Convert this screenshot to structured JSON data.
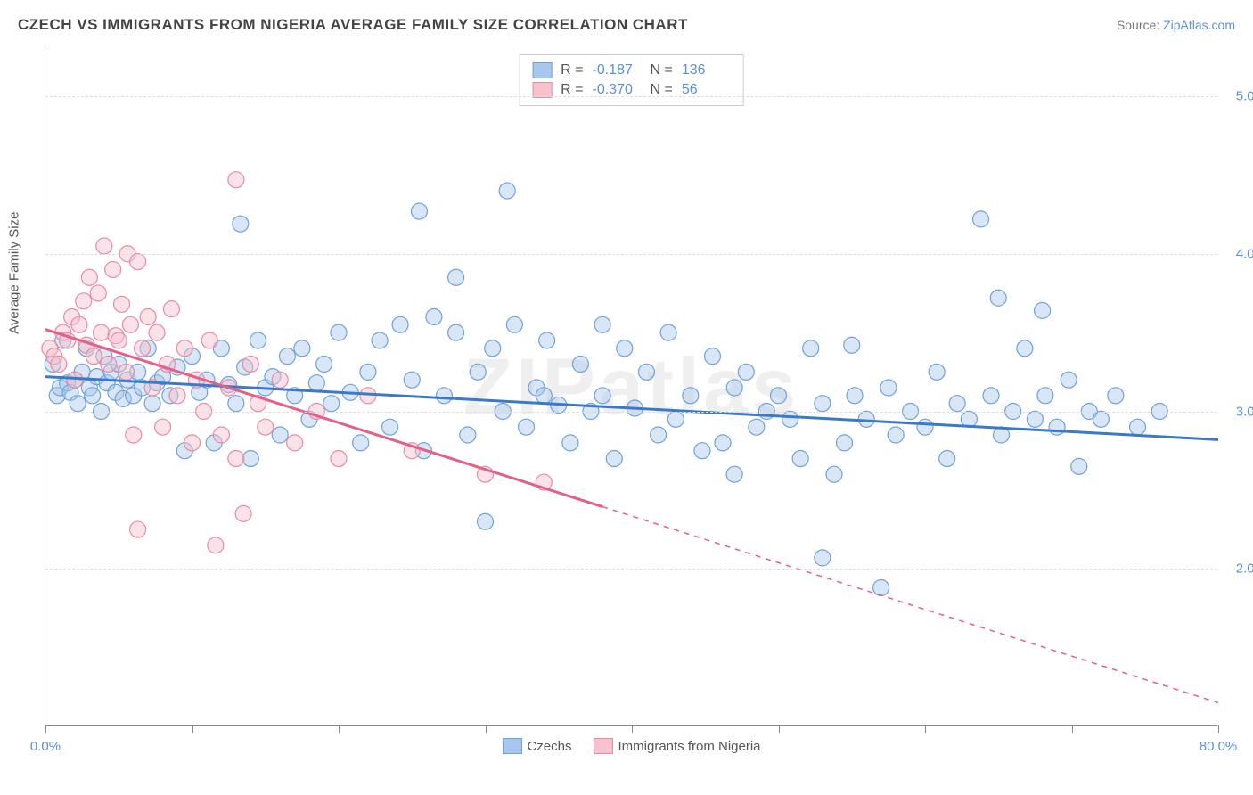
{
  "title": "CZECH VS IMMIGRANTS FROM NIGERIA AVERAGE FAMILY SIZE CORRELATION CHART",
  "source_prefix": "Source: ",
  "source_link": "ZipAtlas.com",
  "y_axis_label": "Average Family Size",
  "watermark": "ZIPatlas",
  "chart": {
    "type": "scatter",
    "xlim": [
      0,
      80
    ],
    "ylim": [
      1.0,
      5.3
    ],
    "x_ticks": [
      0,
      10,
      20,
      30,
      40,
      50,
      60,
      70,
      80
    ],
    "x_tick_labels": {
      "0": "0.0%",
      "80": "80.0%"
    },
    "y_ticks": [
      2.0,
      3.0,
      4.0,
      5.0
    ],
    "grid_color": "#dddddd",
    "axis_color": "#888888",
    "background_color": "#ffffff",
    "marker_radius": 9,
    "marker_stroke_width": 1.2,
    "marker_fill_opacity": 0.45,
    "line_width": 3
  },
  "series": [
    {
      "name": "Czechs",
      "color_fill": "#a9c7ec",
      "color_stroke": "#6fa2db",
      "line_color": "#3b79c9",
      "R": "-0.187",
      "N": "136",
      "regression": {
        "x1": 0,
        "y1": 3.22,
        "x2": 80,
        "y2": 2.82,
        "solid_until_x": 80
      },
      "points": [
        [
          0.5,
          3.3
        ],
        [
          0.8,
          3.1
        ],
        [
          1.0,
          3.15
        ],
        [
          1.2,
          3.45
        ],
        [
          1.5,
          3.18
        ],
        [
          1.7,
          3.12
        ],
        [
          2.0,
          3.2
        ],
        [
          2.2,
          3.05
        ],
        [
          2.5,
          3.25
        ],
        [
          2.8,
          3.4
        ],
        [
          3.0,
          3.15
        ],
        [
          3.2,
          3.1
        ],
        [
          3.5,
          3.22
        ],
        [
          3.8,
          3.0
        ],
        [
          4.0,
          3.35
        ],
        [
          4.2,
          3.18
        ],
        [
          4.5,
          3.25
        ],
        [
          4.8,
          3.12
        ],
        [
          5.0,
          3.3
        ],
        [
          5.3,
          3.08
        ],
        [
          5.6,
          3.2
        ],
        [
          6.0,
          3.1
        ],
        [
          6.3,
          3.25
        ],
        [
          6.6,
          3.15
        ],
        [
          7.0,
          3.4
        ],
        [
          7.3,
          3.05
        ],
        [
          7.6,
          3.18
        ],
        [
          8.0,
          3.22
        ],
        [
          8.5,
          3.1
        ],
        [
          9.0,
          3.28
        ],
        [
          9.5,
          2.75
        ],
        [
          10.0,
          3.35
        ],
        [
          10.5,
          3.12
        ],
        [
          11.0,
          3.2
        ],
        [
          11.5,
          2.8
        ],
        [
          12.0,
          3.4
        ],
        [
          12.5,
          3.17
        ],
        [
          13.0,
          3.05
        ],
        [
          13.3,
          4.19
        ],
        [
          13.6,
          3.28
        ],
        [
          14.0,
          2.7
        ],
        [
          14.5,
          3.45
        ],
        [
          15.0,
          3.15
        ],
        [
          15.5,
          3.22
        ],
        [
          16.0,
          2.85
        ],
        [
          16.5,
          3.35
        ],
        [
          17.0,
          3.1
        ],
        [
          17.5,
          3.4
        ],
        [
          18.0,
          2.95
        ],
        [
          18.5,
          3.18
        ],
        [
          19.0,
          3.3
        ],
        [
          19.5,
          3.05
        ],
        [
          20.0,
          3.5
        ],
        [
          20.8,
          3.12
        ],
        [
          21.5,
          2.8
        ],
        [
          22.0,
          3.25
        ],
        [
          22.8,
          3.45
        ],
        [
          23.5,
          2.9
        ],
        [
          24.2,
          3.55
        ],
        [
          25.0,
          3.2
        ],
        [
          25.5,
          4.27
        ],
        [
          25.8,
          2.75
        ],
        [
          26.5,
          3.6
        ],
        [
          27.2,
          3.1
        ],
        [
          28.0,
          3.85
        ],
        [
          28.0,
          3.5
        ],
        [
          28.8,
          2.85
        ],
        [
          29.5,
          3.25
        ],
        [
          30.0,
          2.3
        ],
        [
          30.5,
          3.4
        ],
        [
          31.2,
          3.0
        ],
        [
          31.5,
          4.4
        ],
        [
          32.0,
          3.55
        ],
        [
          32.8,
          2.9
        ],
        [
          33.5,
          3.15
        ],
        [
          34.0,
          3.1
        ],
        [
          34.2,
          3.45
        ],
        [
          35.0,
          3.04
        ],
        [
          35.8,
          2.8
        ],
        [
          36.5,
          3.3
        ],
        [
          37.2,
          3.0
        ],
        [
          38.0,
          3.1
        ],
        [
          38.0,
          3.55
        ],
        [
          38.8,
          2.7
        ],
        [
          39.5,
          3.4
        ],
        [
          40.2,
          3.02
        ],
        [
          41.0,
          3.25
        ],
        [
          41.8,
          2.85
        ],
        [
          42.5,
          3.5
        ],
        [
          43.0,
          2.95
        ],
        [
          44.0,
          3.1
        ],
        [
          44.8,
          2.75
        ],
        [
          45.5,
          3.35
        ],
        [
          46.2,
          2.8
        ],
        [
          47.0,
          2.6
        ],
        [
          47.0,
          3.15
        ],
        [
          47.8,
          3.25
        ],
        [
          48.5,
          2.9
        ],
        [
          49.2,
          3.0
        ],
        [
          50.0,
          3.1
        ],
        [
          50.8,
          2.95
        ],
        [
          51.5,
          2.7
        ],
        [
          52.2,
          3.4
        ],
        [
          53.0,
          3.05
        ],
        [
          53.0,
          2.07
        ],
        [
          53.8,
          2.6
        ],
        [
          54.5,
          2.8
        ],
        [
          55.0,
          3.42
        ],
        [
          55.2,
          3.1
        ],
        [
          56.0,
          2.95
        ],
        [
          57.0,
          1.88
        ],
        [
          57.5,
          3.15
        ],
        [
          58.0,
          2.85
        ],
        [
          59.0,
          3.0
        ],
        [
          60.0,
          2.9
        ],
        [
          60.8,
          3.25
        ],
        [
          61.5,
          2.7
        ],
        [
          62.2,
          3.05
        ],
        [
          63.0,
          2.95
        ],
        [
          63.8,
          4.22
        ],
        [
          64.5,
          3.1
        ],
        [
          65.0,
          3.72
        ],
        [
          65.2,
          2.85
        ],
        [
          66.0,
          3.0
        ],
        [
          66.8,
          3.4
        ],
        [
          67.5,
          2.95
        ],
        [
          68.0,
          3.64
        ],
        [
          68.2,
          3.1
        ],
        [
          69.0,
          2.9
        ],
        [
          69.8,
          3.2
        ],
        [
          70.5,
          2.65
        ],
        [
          71.2,
          3.0
        ],
        [
          72.0,
          2.95
        ],
        [
          73.0,
          3.1
        ],
        [
          74.5,
          2.9
        ],
        [
          76.0,
          3.0
        ]
      ]
    },
    {
      "name": "Immigrants from Nigeria",
      "color_fill": "#f5c2cd",
      "color_stroke": "#e98ba2",
      "line_color": "#e65f87",
      "R": "-0.370",
      "N": "56",
      "regression": {
        "x1": 0,
        "y1": 3.52,
        "x2": 80,
        "y2": 1.15,
        "solid_until_x": 38
      },
      "points": [
        [
          0.3,
          3.4
        ],
        [
          0.6,
          3.35
        ],
        [
          0.9,
          3.3
        ],
        [
          1.2,
          3.5
        ],
        [
          1.5,
          3.45
        ],
        [
          1.8,
          3.6
        ],
        [
          2.0,
          3.2
        ],
        [
          2.3,
          3.55
        ],
        [
          2.6,
          3.7
        ],
        [
          2.8,
          3.42
        ],
        [
          3.0,
          3.85
        ],
        [
          3.3,
          3.35
        ],
        [
          3.6,
          3.75
        ],
        [
          3.8,
          3.5
        ],
        [
          4.0,
          4.05
        ],
        [
          4.3,
          3.3
        ],
        [
          4.6,
          3.9
        ],
        [
          4.8,
          3.48
        ],
        [
          5.0,
          3.45
        ],
        [
          5.2,
          3.68
        ],
        [
          5.5,
          3.25
        ],
        [
          5.8,
          3.55
        ],
        [
          5.6,
          4.0
        ],
        [
          6.0,
          2.85
        ],
        [
          6.3,
          2.25
        ],
        [
          6.3,
          3.95
        ],
        [
          6.6,
          3.4
        ],
        [
          7.0,
          3.6
        ],
        [
          7.3,
          3.15
        ],
        [
          7.6,
          3.5
        ],
        [
          8.0,
          2.9
        ],
        [
          8.3,
          3.3
        ],
        [
          8.6,
          3.65
        ],
        [
          9.0,
          3.1
        ],
        [
          9.5,
          3.4
        ],
        [
          10.0,
          2.8
        ],
        [
          10.3,
          3.2
        ],
        [
          10.8,
          3.0
        ],
        [
          11.2,
          3.45
        ],
        [
          11.6,
          2.15
        ],
        [
          12.0,
          2.85
        ],
        [
          12.5,
          3.15
        ],
        [
          13.0,
          2.7
        ],
        [
          13.0,
          4.47
        ],
        [
          13.5,
          2.35
        ],
        [
          14.0,
          3.3
        ],
        [
          14.5,
          3.05
        ],
        [
          15.0,
          2.9
        ],
        [
          16.0,
          3.2
        ],
        [
          17.0,
          2.8
        ],
        [
          18.5,
          3.0
        ],
        [
          20.0,
          2.7
        ],
        [
          22.0,
          3.1
        ],
        [
          25.0,
          2.75
        ],
        [
          30.0,
          2.6
        ],
        [
          34.0,
          2.55
        ]
      ]
    }
  ],
  "legend": {
    "items": [
      {
        "label": "Czechs",
        "fill": "#a9c7ec",
        "stroke": "#6fa2db"
      },
      {
        "label": "Immigrants from Nigeria",
        "fill": "#f5c2cd",
        "stroke": "#e98ba2"
      }
    ]
  }
}
